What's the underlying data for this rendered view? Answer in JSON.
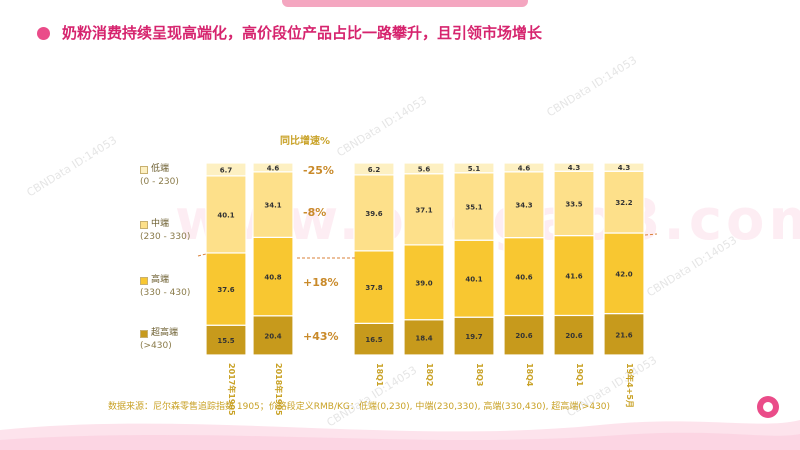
{
  "title": "奶粉消费持续呈现高端化，高价段位产品占比一路攀升，且引领市场增长",
  "colors": {
    "accent": "#ea4c89",
    "title": "#d6246e",
    "low": "#fdf0c2",
    "mid": "#fde08a",
    "high": "#f8c731",
    "super": "#c79a1c"
  },
  "chart_header": "同比增速%",
  "source_note": "数据来源：尼尔森零售追踪指数 1905；价格段定义RMB/KG：低端(0,230), 中端(230,330), 高端(330,430), 超高端(>430)",
  "watermark": "CBNData ID:14053",
  "big_watermark": "www.baogao8.com",
  "legend": [
    {
      "name": "低端",
      "range": "(0 - 230)",
      "color": "#fdf0c2"
    },
    {
      "name": "中端",
      "range": "(230 - 330)",
      "color": "#fde08a"
    },
    {
      "name": "高端",
      "range": "(330 - 430)",
      "color": "#f8c731"
    },
    {
      "name": "超高端",
      "range": "(>430)",
      "color": "#c79a1c"
    }
  ],
  "growth": [
    "-25%",
    "-8%",
    "+18%",
    "+43%"
  ],
  "chart_data": {
    "type": "bar",
    "stacked": true,
    "normalized": true,
    "categories": [
      "2017年1905",
      "2018年1905",
      "18Q1",
      "18Q2",
      "18Q3",
      "18Q4",
      "19Q1",
      "19年4+5月"
    ],
    "series": [
      {
        "name": "超高端",
        "values": [
          15.5,
          20.4,
          16.5,
          18.4,
          19.7,
          20.6,
          20.6,
          21.6
        ]
      },
      {
        "name": "高端",
        "values": [
          37.6,
          40.8,
          37.8,
          39.0,
          40.1,
          40.6,
          41.6,
          42.0
        ]
      },
      {
        "name": "中端",
        "values": [
          40.1,
          34.1,
          39.6,
          37.1,
          35.1,
          34.3,
          33.5,
          32.2
        ]
      },
      {
        "name": "低端",
        "values": [
          6.7,
          4.6,
          6.2,
          5.6,
          5.1,
          4.6,
          4.3,
          4.3
        ]
      }
    ],
    "ylim": [
      0,
      100
    ],
    "title": "同比增速%",
    "xlabel": "",
    "ylabel": ""
  }
}
